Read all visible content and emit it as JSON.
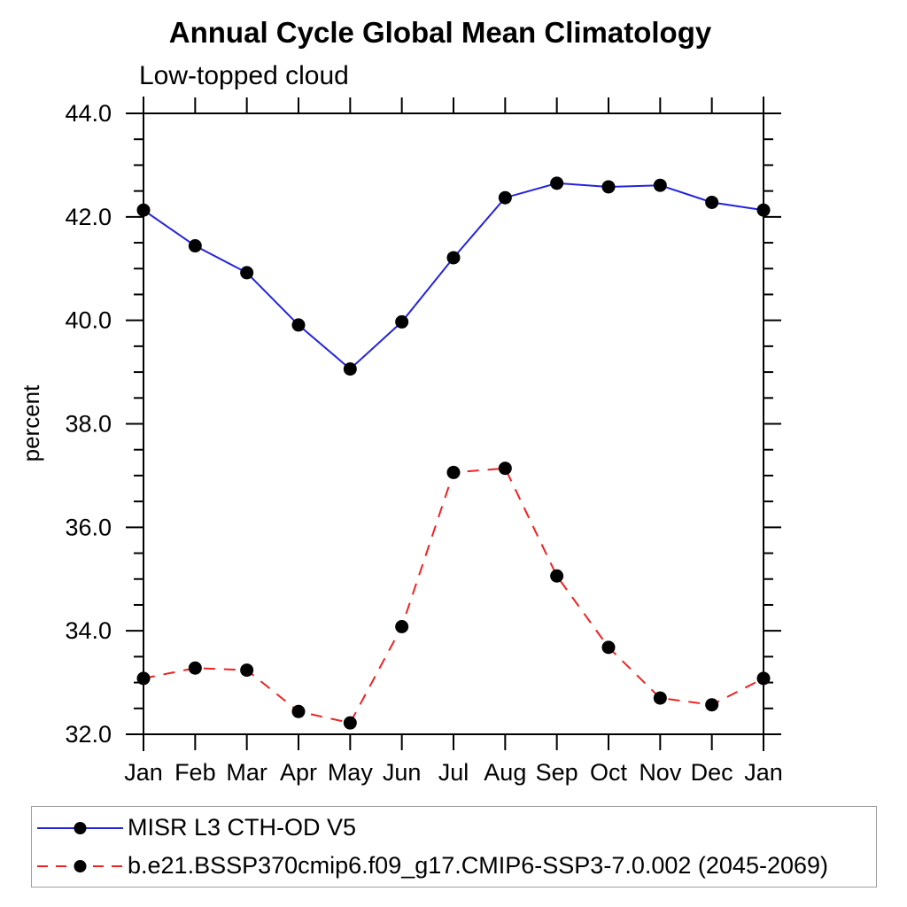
{
  "page": {
    "background": "#ffffff"
  },
  "chart_data": {
    "type": "line",
    "title": "Annual Cycle Global Mean Climatology",
    "subtitle": "Low-topped cloud",
    "ylabel": "percent",
    "xlabel": "",
    "x_categories": [
      "Jan",
      "Feb",
      "Mar",
      "Apr",
      "May",
      "Jun",
      "Jul",
      "Aug",
      "Sep",
      "Oct",
      "Nov",
      "Dec",
      "Jan"
    ],
    "ylim": [
      32.0,
      44.0
    ],
    "y_major_step": 2.0,
    "y_minor_step": 0.5,
    "y_major_tick_labels": [
      "32.0",
      "34.0",
      "36.0",
      "38.0",
      "40.0",
      "42.0",
      "44.0"
    ],
    "grid": false,
    "legend_position": "bottom",
    "axis_color": "#000000",
    "series": [
      {
        "name": "MISR L3 CTH-OD V5",
        "line_style": "solid",
        "line_color": "#2323dc",
        "marker": "filled-circle",
        "marker_color": "#000000",
        "values": [
          42.13,
          41.44,
          40.92,
          39.91,
          39.06,
          39.97,
          41.21,
          42.37,
          42.65,
          42.58,
          42.61,
          42.28,
          42.13
        ]
      },
      {
        "name": "b.e21.BSSP370cmip6.f09_g17.CMIP6-SSP3-7.0.002 (2045-2069)",
        "line_style": "dashed",
        "line_color": "#ee2222",
        "marker": "filled-circle",
        "marker_color": "#000000",
        "values": [
          33.08,
          33.28,
          33.24,
          32.44,
          32.22,
          34.08,
          37.06,
          37.14,
          35.06,
          33.68,
          32.7,
          32.57,
          33.08
        ]
      }
    ]
  }
}
